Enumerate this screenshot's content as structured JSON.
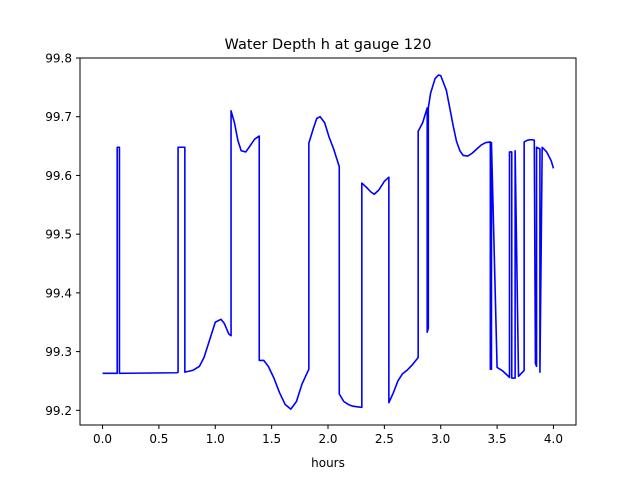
{
  "chart_data": {
    "type": "line",
    "title": "Water Depth h at gauge 120",
    "xlabel": "hours",
    "ylabel": "",
    "xlim": [
      -0.2,
      4.2
    ],
    "ylim": [
      99.175,
      99.8
    ],
    "xticks": [
      0.0,
      0.5,
      1.0,
      1.5,
      2.0,
      2.5,
      3.0,
      3.5,
      4.0
    ],
    "xtick_labels": [
      "0.0",
      "0.5",
      "1.0",
      "1.5",
      "2.0",
      "2.5",
      "3.0",
      "3.5",
      "4.0"
    ],
    "yticks": [
      99.2,
      99.3,
      99.4,
      99.5,
      99.6,
      99.7,
      99.8
    ],
    "ytick_labels": [
      "99.2",
      "99.3",
      "99.4",
      "99.5",
      "99.6",
      "99.7",
      "99.8"
    ],
    "grid": false,
    "series": [
      {
        "color": "#0000ff",
        "x": [
          0.0,
          0.13,
          0.13,
          0.15,
          0.15,
          0.66,
          0.67,
          0.67,
          0.73,
          0.73,
          0.8,
          0.86,
          0.9,
          0.95,
          1.0,
          1.05,
          1.08,
          1.12,
          1.14,
          1.14,
          1.17,
          1.2,
          1.23,
          1.27,
          1.3,
          1.35,
          1.39,
          1.39,
          1.43,
          1.47,
          1.52,
          1.57,
          1.62,
          1.67,
          1.72,
          1.77,
          1.83,
          1.83,
          1.87,
          1.9,
          1.93,
          1.97,
          2.01,
          2.05,
          2.1,
          2.1,
          2.14,
          2.18,
          2.22,
          2.26,
          2.3,
          2.3,
          2.34,
          2.38,
          2.41,
          2.45,
          2.5,
          2.54,
          2.54,
          2.58,
          2.62,
          2.66,
          2.7,
          2.75,
          2.8,
          2.8,
          2.84,
          2.88,
          2.88,
          2.89,
          2.89,
          2.91,
          2.95,
          2.98,
          3.0,
          3.02,
          3.05,
          3.08,
          3.11,
          3.14,
          3.17,
          3.2,
          3.24,
          3.28,
          3.32,
          3.36,
          3.4,
          3.44,
          3.44,
          3.45,
          3.45,
          3.5,
          3.55,
          3.6,
          3.61,
          3.61,
          3.63,
          3.63,
          3.66,
          3.66,
          3.69,
          3.74,
          3.74,
          3.77,
          3.8,
          3.83,
          3.84,
          3.85,
          3.85,
          3.88,
          3.88,
          3.9,
          3.94,
          3.98,
          4.0
        ],
        "y": [
          99.263,
          99.263,
          99.648,
          99.648,
          99.263,
          99.264,
          99.265,
          99.648,
          99.648,
          99.265,
          99.268,
          99.275,
          99.29,
          99.32,
          99.35,
          99.355,
          99.348,
          99.33,
          99.327,
          99.71,
          99.69,
          99.66,
          99.642,
          99.64,
          99.648,
          99.662,
          99.667,
          99.285,
          99.285,
          99.275,
          99.255,
          99.23,
          99.21,
          99.202,
          99.215,
          99.245,
          99.27,
          99.655,
          99.68,
          99.697,
          99.7,
          99.69,
          99.665,
          99.645,
          99.615,
          99.228,
          99.215,
          99.21,
          99.207,
          99.206,
          99.205,
          99.587,
          99.58,
          99.572,
          99.568,
          99.575,
          99.59,
          99.597,
          99.213,
          99.23,
          99.25,
          99.262,
          99.268,
          99.278,
          99.29,
          99.675,
          99.69,
          99.715,
          99.333,
          99.34,
          99.715,
          99.74,
          99.765,
          99.771,
          99.77,
          99.76,
          99.745,
          99.715,
          99.685,
          99.658,
          99.642,
          99.634,
          99.633,
          99.638,
          99.645,
          99.652,
          99.656,
          99.657,
          99.27,
          99.27,
          99.656,
          99.273,
          99.267,
          99.258,
          99.256,
          99.64,
          99.64,
          99.255,
          99.255,
          99.642,
          99.258,
          99.268,
          99.657,
          99.66,
          99.661,
          99.66,
          99.28,
          99.275,
          99.648,
          99.645,
          99.265,
          99.648,
          99.64,
          99.625,
          99.612
        ]
      }
    ]
  }
}
